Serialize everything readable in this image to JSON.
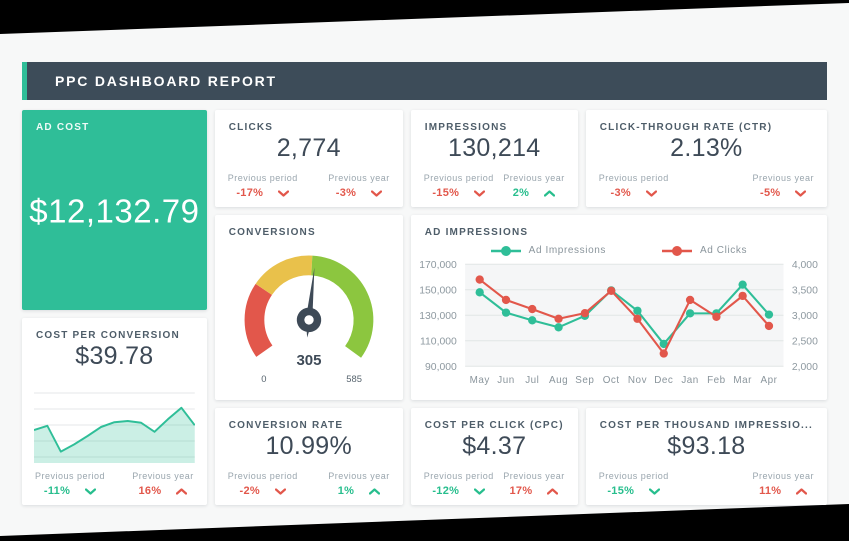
{
  "page": {
    "title": "PPC DASHBOARD REPORT"
  },
  "colors": {
    "accent_teal": "#2fbe98",
    "header_slate": "#3d4c59",
    "negative_red": "#e2574b",
    "positive_green": "#27be8d",
    "gauge_red": "#e2574b",
    "gauge_yellow": "#e9c14b",
    "gauge_green": "#8cc63f",
    "value_text": "#3e4a57"
  },
  "labels": {
    "previous_period": "Previous period",
    "previous_year": "Previous year"
  },
  "cards": {
    "ad_cost": {
      "title": "AD COST",
      "value": "$12,132.79"
    },
    "clicks": {
      "title": "CLICKS",
      "value": "2,774",
      "period": {
        "value": "-17%",
        "direction": "down",
        "color": "#e2574b"
      },
      "year": {
        "value": "-3%",
        "direction": "down",
        "color": "#e2574b"
      }
    },
    "impressions": {
      "title": "IMPRESSIONS",
      "value": "130,214",
      "period": {
        "value": "-15%",
        "direction": "down",
        "color": "#e2574b"
      },
      "year": {
        "value": "2%",
        "direction": "up",
        "color": "#27be8d"
      }
    },
    "ctr": {
      "title": "CLICK-THROUGH RATE (CTR)",
      "value": "2.13%",
      "period": {
        "value": "-3%",
        "direction": "down",
        "color": "#e2574b"
      },
      "year": {
        "value": "-5%",
        "direction": "down",
        "color": "#e2574b"
      }
    },
    "conversions": {
      "title": "CONVERSIONS",
      "gauge": {
        "value": 305,
        "min": 0,
        "max": 585,
        "value_label": "305",
        "min_label": "0",
        "max_label": "585",
        "start_angle": 215,
        "sweep": 251,
        "segments": [
          {
            "color": "#e2574b",
            "frac": 0.275
          },
          {
            "color": "#e9c14b",
            "frac": 0.235
          },
          {
            "color": "#8cc63f",
            "frac": 0.49
          }
        ],
        "needle_color": "#3e4a57"
      }
    },
    "cost_per_conversion": {
      "title": "COST PER CONVERSION",
      "value": "$39.78",
      "spark": [
        0.5,
        0.57,
        0.14,
        0.26,
        0.4,
        0.55,
        0.63,
        0.65,
        0.62,
        0.47,
        0.68,
        0.87,
        0.58
      ],
      "period": {
        "value": "-11%",
        "direction": "down",
        "color": "#27be8d"
      },
      "year": {
        "value": "16%",
        "direction": "up",
        "color": "#e2574b"
      }
    },
    "conversion_rate": {
      "title": "CONVERSION RATE",
      "value": "10.99%",
      "period": {
        "value": "-2%",
        "direction": "down",
        "color": "#e2574b"
      },
      "year": {
        "value": "1%",
        "direction": "up",
        "color": "#27be8d"
      }
    },
    "cpc": {
      "title": "COST PER CLICK (CPC)",
      "value": "$4.37",
      "period": {
        "value": "-12%",
        "direction": "down",
        "color": "#27be8d"
      },
      "year": {
        "value": "17%",
        "direction": "up",
        "color": "#e2574b"
      }
    },
    "cpm": {
      "title": "COST PER THOUSAND IMPRESSIO...",
      "value": "$93.18",
      "period": {
        "value": "-15%",
        "direction": "down",
        "color": "#27be8d"
      },
      "year": {
        "value": "11%",
        "direction": "up",
        "color": "#e2574b"
      }
    }
  },
  "chart_data": {
    "type": "line",
    "title": "AD IMPRESSIONS",
    "x": [
      "May",
      "Jun",
      "Jul",
      "Aug",
      "Sep",
      "Oct",
      "Nov",
      "Dec",
      "Jan",
      "Feb",
      "Mar",
      "Apr"
    ],
    "series": [
      {
        "name": "Ad Impressions",
        "axis": "left",
        "color": "#2fbe98",
        "values": [
          148000,
          132000,
          126000,
          120500,
          129500,
          149500,
          133500,
          107500,
          131500,
          131500,
          154000,
          130500
        ]
      },
      {
        "name": "Ad Clicks",
        "axis": "right",
        "color": "#e2574b",
        "values": [
          3700,
          3300,
          3120,
          2930,
          3040,
          3480,
          2930,
          2250,
          3300,
          2970,
          3380,
          2790
        ]
      }
    ],
    "left_axis": {
      "min": 90000,
      "max": 170000,
      "ticks": [
        "170,000",
        "150,000",
        "130,000",
        "110,000",
        "90,000"
      ]
    },
    "right_axis": {
      "min": 2000,
      "max": 4000,
      "ticks": [
        "4,000",
        "3,500",
        "3,000",
        "2,500",
        "2,000"
      ]
    },
    "legend_position": "top",
    "grid": true
  }
}
